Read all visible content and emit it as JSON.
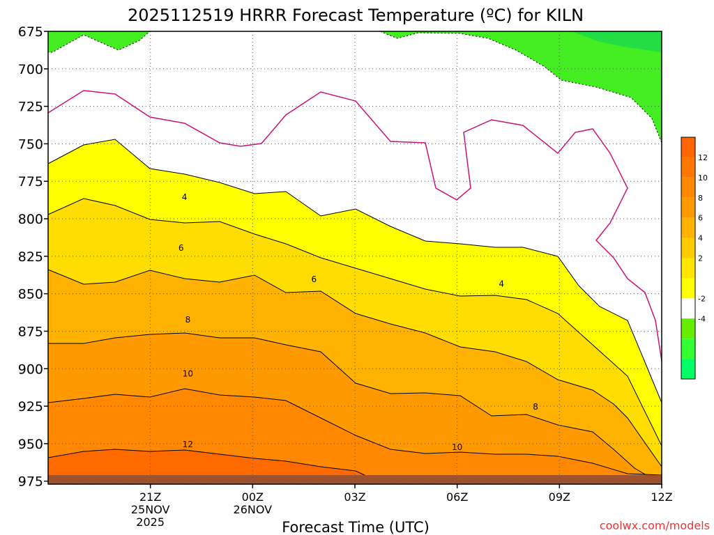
{
  "chart_data": {
    "type": "contour",
    "title": "2025112519 HRRR Forecast Temperature (ºC) for KILN",
    "xlabel": "Forecast Time (UTC)",
    "ylabel": "",
    "credit": "coolwx.com/models",
    "x_range_hours": [
      -1.5,
      16.5
    ],
    "y_range_hpa": [
      675,
      977
    ],
    "y_ticks": [
      675,
      700,
      725,
      750,
      775,
      800,
      825,
      850,
      875,
      900,
      925,
      950,
      975
    ],
    "y_tick_labels": [
      "675",
      "700",
      "725",
      "750",
      "775",
      "800",
      "825",
      "850",
      "875",
      "900",
      "925",
      "950",
      "975"
    ],
    "x_ticks": [
      {
        "hour": 1.5,
        "lines": [
          "21Z",
          "25NOV",
          "2025"
        ]
      },
      {
        "hour": 4.5,
        "lines": [
          "00Z",
          "26NOV"
        ]
      },
      {
        "hour": 7.5,
        "lines": [
          "03Z"
        ]
      },
      {
        "hour": 10.5,
        "lines": [
          "06Z"
        ]
      },
      {
        "hour": 13.5,
        "lines": [
          "09Z"
        ]
      },
      {
        "hour": 16.5,
        "lines": [
          "12Z"
        ]
      }
    ],
    "contour_labels": [
      {
        "text": "4",
        "hour": 2.5,
        "hpa": 785
      },
      {
        "text": "6",
        "hour": 2.4,
        "hpa": 819
      },
      {
        "text": "8",
        "hour": 2.6,
        "hpa": 867
      },
      {
        "text": "10",
        "hour": 2.6,
        "hpa": 903
      },
      {
        "text": "12",
        "hour": 2.6,
        "hpa": 950
      },
      {
        "text": "6",
        "hour": 6.3,
        "hpa": 840
      },
      {
        "text": "4",
        "hour": 11.8,
        "hpa": 843
      },
      {
        "text": "8",
        "hour": 12.8,
        "hpa": 925
      },
      {
        "text": "10",
        "hour": 10.5,
        "hpa": 952
      }
    ],
    "colorbar": {
      "colors": [
        "#00ff66",
        "#33ff33",
        "#66ee00",
        "#ffffff",
        "#ffff00",
        "#ffe600",
        "#ffcc00",
        "#ffb300",
        "#ff9900",
        "#ff8800",
        "#ff7700",
        "#ff6600"
      ],
      "tick_labels": [
        "-4",
        "-2",
        "2",
        "4",
        "6",
        "8",
        "10",
        "12"
      ]
    },
    "fill_colors": {
      "cold": "#44ee22",
      "cold_dark": "#22dd44",
      "t0_2": "#ffffff",
      "t2_4": "#ffff00",
      "t4_6": "#ffdd00",
      "t6_8": "#ffb300",
      "t8_10": "#ff9900",
      "t10_12": "#ff8800",
      "t12_14": "#ff6a00",
      "ground": "#a0522d",
      "freezing_line": "#cc1177"
    }
  }
}
